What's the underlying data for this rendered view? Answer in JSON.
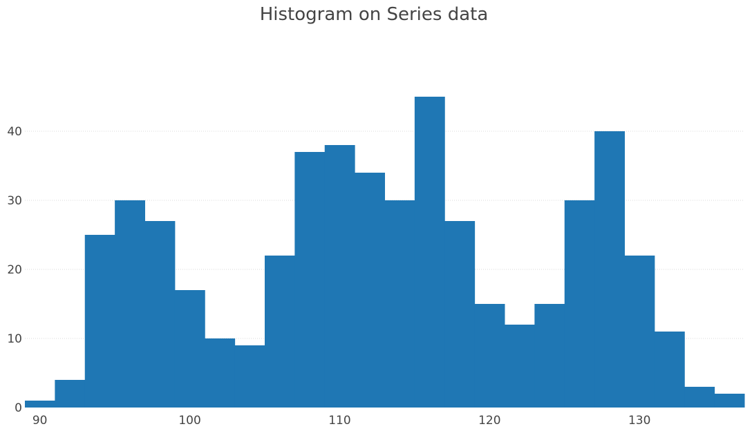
{
  "chart_data": {
    "type": "bar",
    "title": "Histogram on Series data",
    "xlabel": "",
    "ylabel": "",
    "color": "#1f77b4",
    "bins": [
      {
        "x0": 89,
        "x1": 91,
        "value": 1
      },
      {
        "x0": 91,
        "x1": 93,
        "value": 4
      },
      {
        "x0": 93,
        "x1": 95,
        "value": 25
      },
      {
        "x0": 95,
        "x1": 97,
        "value": 30
      },
      {
        "x0": 97,
        "x1": 99,
        "value": 27
      },
      {
        "x0": 99,
        "x1": 101,
        "value": 17
      },
      {
        "x0": 101,
        "x1": 103,
        "value": 10
      },
      {
        "x0": 103,
        "x1": 105,
        "value": 9
      },
      {
        "x0": 105,
        "x1": 107,
        "value": 22
      },
      {
        "x0": 107,
        "x1": 109,
        "value": 37
      },
      {
        "x0": 109,
        "x1": 111,
        "value": 38
      },
      {
        "x0": 111,
        "x1": 113,
        "value": 34
      },
      {
        "x0": 113,
        "x1": 115,
        "value": 30
      },
      {
        "x0": 115,
        "x1": 117,
        "value": 45
      },
      {
        "x0": 117,
        "x1": 119,
        "value": 27
      },
      {
        "x0": 119,
        "x1": 121,
        "value": 15
      },
      {
        "x0": 121,
        "x1": 123,
        "value": 12
      },
      {
        "x0": 123,
        "x1": 125,
        "value": 15
      },
      {
        "x0": 125,
        "x1": 127,
        "value": 30
      },
      {
        "x0": 127,
        "x1": 129,
        "value": 40
      },
      {
        "x0": 129,
        "x1": 131,
        "value": 22
      },
      {
        "x0": 131,
        "x1": 133,
        "value": 11
      },
      {
        "x0": 133,
        "x1": 135,
        "value": 3
      },
      {
        "x0": 135,
        "x1": 137,
        "value": 2
      }
    ],
    "xlim": [
      89,
      137
    ],
    "ylim": [
      0,
      49
    ],
    "x_ticks": [
      90,
      100,
      110,
      120,
      130
    ],
    "y_ticks": [
      0,
      10,
      20,
      30,
      40
    ],
    "grid": true,
    "legend": "none"
  }
}
